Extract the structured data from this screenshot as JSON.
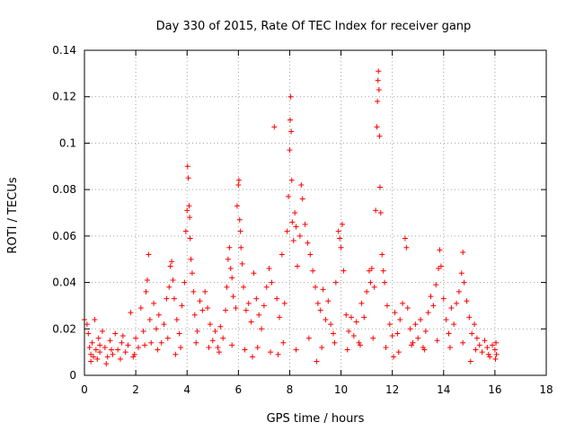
{
  "chart_data": {
    "type": "scatter",
    "title": "Day 330 of 2015, Rate Of TEC Index for receiver ganp",
    "xlabel": "GPS time / hours",
    "ylabel": "ROTI / TECUs",
    "xlim": [
      0,
      18
    ],
    "ylim": [
      0,
      0.14
    ],
    "xticks": [
      0,
      2,
      4,
      6,
      8,
      10,
      12,
      14,
      16,
      18
    ],
    "yticks": [
      0,
      0.02,
      0.04,
      0.06,
      0.08,
      0.1,
      0.12,
      0.14
    ],
    "xtick_labels": [
      "0",
      "2",
      "4",
      "6",
      "8",
      "10",
      "12",
      "14",
      "16",
      "18"
    ],
    "ytick_labels": [
      "0",
      "0.02",
      "0.04",
      "0.06",
      "0.08",
      "0.1",
      "0.12",
      "0.14"
    ],
    "grid": true,
    "marker": "+",
    "color": "#ff0000",
    "series": [
      {
        "name": "ROTI",
        "points": [
          [
            0.0,
            0.024
          ],
          [
            0.1,
            0.022
          ],
          [
            0.15,
            0.018
          ],
          [
            0.2,
            0.012
          ],
          [
            0.25,
            0.009
          ],
          [
            0.3,
            0.014
          ],
          [
            0.35,
            0.008
          ],
          [
            0.4,
            0.024
          ],
          [
            0.45,
            0.011
          ],
          [
            0.5,
            0.007
          ],
          [
            0.55,
            0.016
          ],
          [
            0.6,
            0.01
          ],
          [
            0.7,
            0.019
          ],
          [
            0.8,
            0.012
          ],
          [
            0.9,
            0.008
          ],
          [
            1.0,
            0.015
          ],
          [
            1.1,
            0.009
          ],
          [
            1.2,
            0.018
          ],
          [
            1.3,
            0.011
          ],
          [
            1.4,
            0.007
          ],
          [
            1.5,
            0.017
          ],
          [
            1.6,
            0.01
          ],
          [
            1.7,
            0.013
          ],
          [
            1.8,
            0.027
          ],
          [
            1.9,
            0.008
          ],
          [
            2.0,
            0.016
          ],
          [
            2.1,
            0.012
          ],
          [
            2.2,
            0.029
          ],
          [
            2.3,
            0.019
          ],
          [
            2.4,
            0.036
          ],
          [
            2.45,
            0.041
          ],
          [
            2.5,
            0.052
          ],
          [
            2.55,
            0.024
          ],
          [
            2.6,
            0.014
          ],
          [
            2.7,
            0.031
          ],
          [
            2.8,
            0.02
          ],
          [
            2.9,
            0.026
          ],
          [
            3.0,
            0.014
          ],
          [
            3.1,
            0.022
          ],
          [
            3.2,
            0.033
          ],
          [
            3.3,
            0.038
          ],
          [
            3.35,
            0.047
          ],
          [
            3.4,
            0.049
          ],
          [
            3.45,
            0.041
          ],
          [
            3.5,
            0.033
          ],
          [
            3.6,
            0.024
          ],
          [
            3.7,
            0.018
          ],
          [
            3.8,
            0.03
          ],
          [
            3.9,
            0.04
          ],
          [
            3.95,
            0.062
          ],
          [
            4.0,
            0.071
          ],
          [
            4.02,
            0.09
          ],
          [
            4.05,
            0.085
          ],
          [
            4.08,
            0.073
          ],
          [
            4.1,
            0.068
          ],
          [
            4.12,
            0.059
          ],
          [
            4.15,
            0.05
          ],
          [
            4.2,
            0.044
          ],
          [
            4.25,
            0.036
          ],
          [
            4.3,
            0.026
          ],
          [
            4.4,
            0.019
          ],
          [
            4.5,
            0.032
          ],
          [
            4.6,
            0.028
          ],
          [
            4.7,
            0.036
          ],
          [
            4.8,
            0.029
          ],
          [
            4.9,
            0.022
          ],
          [
            5.0,
            0.015
          ],
          [
            5.1,
            0.019
          ],
          [
            5.2,
            0.012
          ],
          [
            5.3,
            0.021
          ],
          [
            5.4,
            0.016
          ],
          [
            5.5,
            0.028
          ],
          [
            5.55,
            0.038
          ],
          [
            5.6,
            0.05
          ],
          [
            5.65,
            0.055
          ],
          [
            5.7,
            0.046
          ],
          [
            5.75,
            0.042
          ],
          [
            5.8,
            0.034
          ],
          [
            5.9,
            0.029
          ],
          [
            5.95,
            0.073
          ],
          [
            6.0,
            0.082
          ],
          [
            6.02,
            0.084
          ],
          [
            6.05,
            0.067
          ],
          [
            6.08,
            0.062
          ],
          [
            6.1,
            0.055
          ],
          [
            6.15,
            0.048
          ],
          [
            6.2,
            0.038
          ],
          [
            6.3,
            0.028
          ],
          [
            6.4,
            0.031
          ],
          [
            6.5,
            0.023
          ],
          [
            6.6,
            0.044
          ],
          [
            6.7,
            0.033
          ],
          [
            6.8,
            0.026
          ],
          [
            6.9,
            0.02
          ],
          [
            7.0,
            0.03
          ],
          [
            7.1,
            0.038
          ],
          [
            7.2,
            0.046
          ],
          [
            7.3,
            0.04
          ],
          [
            7.4,
            0.107
          ],
          [
            7.5,
            0.033
          ],
          [
            7.6,
            0.025
          ],
          [
            7.7,
            0.052
          ],
          [
            7.8,
            0.031
          ],
          [
            7.9,
            0.062
          ],
          [
            7.95,
            0.077
          ],
          [
            8.0,
            0.097
          ],
          [
            8.02,
            0.11
          ],
          [
            8.04,
            0.12
          ],
          [
            8.06,
            0.105
          ],
          [
            8.08,
            0.084
          ],
          [
            8.1,
            0.066
          ],
          [
            8.15,
            0.058
          ],
          [
            8.2,
            0.07
          ],
          [
            8.25,
            0.064
          ],
          [
            8.3,
            0.047
          ],
          [
            8.4,
            0.06
          ],
          [
            8.45,
            0.082
          ],
          [
            8.5,
            0.076
          ],
          [
            8.6,
            0.065
          ],
          [
            8.7,
            0.057
          ],
          [
            8.8,
            0.052
          ],
          [
            8.9,
            0.045
          ],
          [
            9.0,
            0.038
          ],
          [
            9.1,
            0.031
          ],
          [
            9.2,
            0.028
          ],
          [
            9.3,
            0.037
          ],
          [
            9.4,
            0.024
          ],
          [
            9.5,
            0.032
          ],
          [
            9.6,
            0.022
          ],
          [
            9.7,
            0.018
          ],
          [
            9.8,
            0.04
          ],
          [
            9.9,
            0.062
          ],
          [
            9.95,
            0.059
          ],
          [
            10.0,
            0.055
          ],
          [
            10.05,
            0.065
          ],
          [
            10.1,
            0.045
          ],
          [
            10.2,
            0.026
          ],
          [
            10.3,
            0.019
          ],
          [
            10.4,
            0.025
          ],
          [
            10.5,
            0.017
          ],
          [
            10.6,
            0.023
          ],
          [
            10.7,
            0.014
          ],
          [
            10.8,
            0.031
          ],
          [
            10.9,
            0.025
          ],
          [
            11.0,
            0.036
          ],
          [
            11.1,
            0.045
          ],
          [
            11.15,
            0.04
          ],
          [
            11.2,
            0.046
          ],
          [
            11.3,
            0.038
          ],
          [
            11.35,
            0.071
          ],
          [
            11.4,
            0.107
          ],
          [
            11.42,
            0.118
          ],
          [
            11.44,
            0.127
          ],
          [
            11.46,
            0.131
          ],
          [
            11.48,
            0.123
          ],
          [
            11.5,
            0.103
          ],
          [
            11.52,
            0.081
          ],
          [
            11.55,
            0.07
          ],
          [
            11.6,
            0.052
          ],
          [
            11.65,
            0.045
          ],
          [
            11.7,
            0.04
          ],
          [
            11.8,
            0.03
          ],
          [
            11.9,
            0.022
          ],
          [
            12.0,
            0.017
          ],
          [
            12.1,
            0.027
          ],
          [
            12.2,
            0.018
          ],
          [
            12.3,
            0.024
          ],
          [
            12.4,
            0.031
          ],
          [
            12.5,
            0.059
          ],
          [
            12.55,
            0.055
          ],
          [
            12.6,
            0.029
          ],
          [
            12.7,
            0.02
          ],
          [
            12.8,
            0.014
          ],
          [
            12.9,
            0.022
          ],
          [
            13.0,
            0.016
          ],
          [
            13.1,
            0.024
          ],
          [
            13.2,
            0.012
          ],
          [
            13.3,
            0.019
          ],
          [
            13.4,
            0.027
          ],
          [
            13.5,
            0.034
          ],
          [
            13.6,
            0.03
          ],
          [
            13.7,
            0.039
          ],
          [
            13.8,
            0.046
          ],
          [
            13.85,
            0.054
          ],
          [
            13.9,
            0.047
          ],
          [
            14.0,
            0.033
          ],
          [
            14.1,
            0.024
          ],
          [
            14.2,
            0.018
          ],
          [
            14.3,
            0.029
          ],
          [
            14.4,
            0.022
          ],
          [
            14.5,
            0.031
          ],
          [
            14.6,
            0.036
          ],
          [
            14.7,
            0.044
          ],
          [
            14.75,
            0.053
          ],
          [
            14.8,
            0.04
          ],
          [
            14.9,
            0.032
          ],
          [
            15.0,
            0.025
          ],
          [
            15.1,
            0.018
          ],
          [
            15.2,
            0.022
          ],
          [
            15.3,
            0.016
          ],
          [
            15.4,
            0.013
          ],
          [
            15.5,
            0.01
          ],
          [
            15.6,
            0.015
          ],
          [
            15.7,
            0.012
          ],
          [
            15.8,
            0.008
          ],
          [
            15.9,
            0.013
          ],
          [
            16.0,
            0.011
          ],
          [
            16.02,
            0.007
          ],
          [
            16.04,
            0.014
          ],
          [
            16.06,
            0.009
          ],
          [
            0.25,
            0.006
          ],
          [
            0.6,
            0.013
          ],
          [
            1.05,
            0.011
          ],
          [
            1.45,
            0.014
          ],
          [
            1.95,
            0.009
          ],
          [
            2.35,
            0.013
          ],
          [
            2.85,
            0.011
          ],
          [
            3.25,
            0.016
          ],
          [
            3.75,
            0.012
          ],
          [
            4.35,
            0.014
          ],
          [
            4.85,
            0.012
          ],
          [
            5.25,
            0.01
          ],
          [
            5.75,
            0.013
          ],
          [
            6.25,
            0.011
          ],
          [
            6.75,
            0.012
          ],
          [
            7.25,
            0.01
          ],
          [
            7.75,
            0.014
          ],
          [
            8.25,
            0.011
          ],
          [
            8.75,
            0.016
          ],
          [
            9.25,
            0.012
          ],
          [
            9.75,
            0.014
          ],
          [
            10.25,
            0.011
          ],
          [
            10.75,
            0.013
          ],
          [
            11.25,
            0.016
          ],
          [
            11.75,
            0.012
          ],
          [
            12.25,
            0.01
          ],
          [
            12.75,
            0.013
          ],
          [
            13.25,
            0.011
          ],
          [
            13.75,
            0.015
          ],
          [
            14.25,
            0.012
          ],
          [
            14.75,
            0.014
          ],
          [
            15.25,
            0.011
          ],
          [
            15.75,
            0.009
          ],
          [
            0.85,
            0.005
          ],
          [
            3.55,
            0.009
          ],
          [
            6.55,
            0.008
          ],
          [
            9.05,
            0.006
          ],
          [
            12.05,
            0.008
          ],
          [
            15.05,
            0.006
          ],
          [
            7.55,
            0.009
          ]
        ]
      }
    ]
  }
}
